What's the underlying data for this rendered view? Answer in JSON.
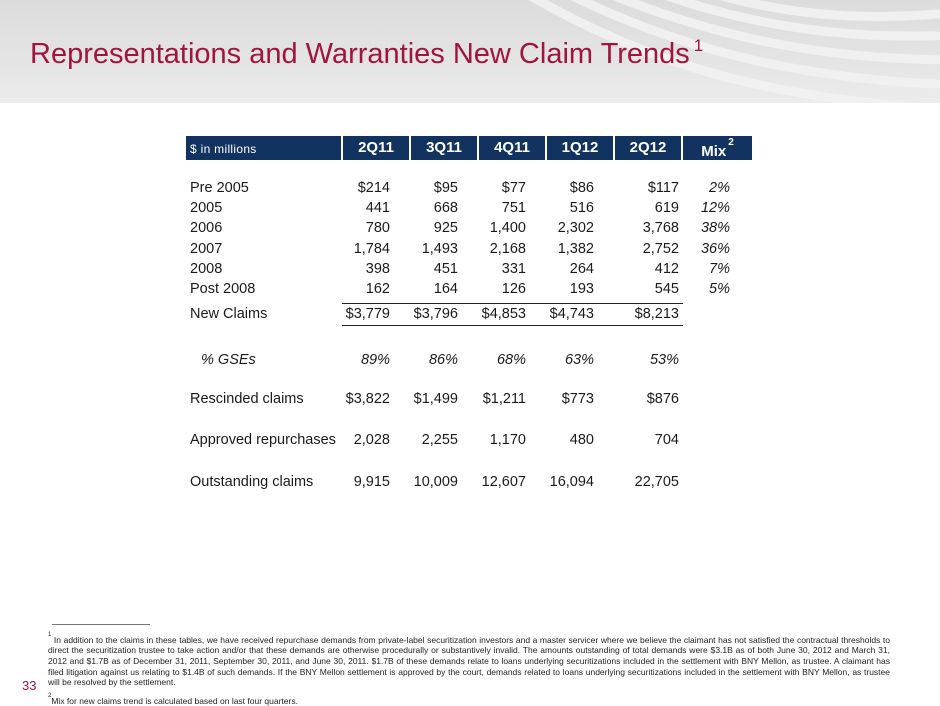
{
  "slide": {
    "title": "Representations and Warranties New Claim Trends",
    "title_footnote_marker": "1",
    "page_number": "33"
  },
  "table": {
    "units_label": "$ in millions",
    "columns": [
      "2Q11",
      "3Q11",
      "4Q11",
      "1Q12",
      "2Q12",
      "Mix"
    ],
    "mix_footnote_marker": "2",
    "vintage_rows": [
      {
        "label": "Pre 2005",
        "values": [
          "$214",
          "$95",
          "$77",
          "$86",
          "$117"
        ],
        "mix": "2%"
      },
      {
        "label": "2005",
        "values": [
          "441",
          "668",
          "751",
          "516",
          "619"
        ],
        "mix": "12%"
      },
      {
        "label": "2006",
        "values": [
          "780",
          "925",
          "1,400",
          "2,302",
          "3,768"
        ],
        "mix": "38%"
      },
      {
        "label": "2007",
        "values": [
          "1,784",
          "1,493",
          "2,168",
          "1,382",
          "2,752"
        ],
        "mix": "36%"
      },
      {
        "label": "2008",
        "values": [
          "398",
          "451",
          "331",
          "264",
          "412"
        ],
        "mix": "7%"
      },
      {
        "label": "Post 2008",
        "values": [
          "162",
          "164",
          "126",
          "193",
          "545"
        ],
        "mix": "5%"
      }
    ],
    "total_row": {
      "label": "New Claims",
      "values": [
        "$3,779",
        "$3,796",
        "$4,853",
        "$4,743",
        "$8,213"
      ]
    },
    "gse_row": {
      "label": "% GSEs",
      "values": [
        "89%",
        "86%",
        "68%",
        "63%",
        "53%"
      ]
    },
    "other_rows": [
      {
        "label": "Rescinded claims",
        "values": [
          "$3,822",
          "$1,499",
          "$1,211",
          "$773",
          "$876"
        ]
      },
      {
        "label": "Approved repurchases",
        "values": [
          "2,028",
          "2,255",
          "1,170",
          "480",
          "704"
        ]
      },
      {
        "label": "Outstanding claims",
        "values": [
          "9,915",
          "10,009",
          "12,607",
          "16,094",
          "22,705"
        ]
      }
    ]
  },
  "footnotes": [
    {
      "marker": "1",
      "text": "In addition to the claims in these tables, we have received repurchase demands from private-label securitization investors and a master servicer where we believe the claimant has not satisfied the contractual thresholds to direct the securitization trustee to take action and/or that these demands are otherwise procedurally or substantively invalid. The amounts outstanding of total demands were $3.1B as of both June 30, 2012 and March 31, 2012 and $1.7B as of December 31, 2011, September 30, 2011, and June 30, 2011. $1.7B of these demands relate to loans underlying securitizations included in the settlement with BNY Mellon, as trustee. A claimant has filed litigation against us relating to $1.4B of such demands. If the BNY Mellon settlement is approved by the court, demands related to loans underlying securitizations included in the settlement with BNY Mellon, as trustee will be resolved by the settlement."
    },
    {
      "marker": "2",
      "text": "Mix for new claims trend is calculated based on last four quarters."
    }
  ],
  "colors": {
    "title": "#a0153e",
    "header_fill": "#12325f",
    "band": "#e0e0e0"
  }
}
